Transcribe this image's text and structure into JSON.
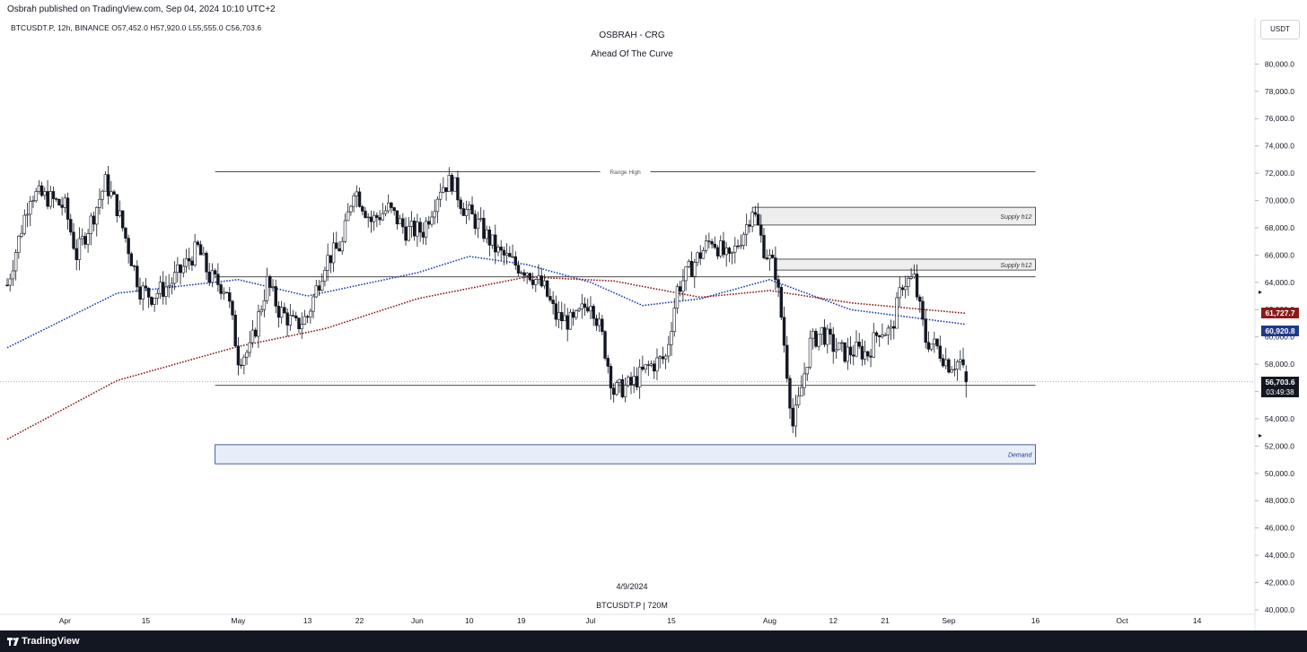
{
  "header": {
    "publish_line": "Osbrah published on TradingView.com, Sep 04, 2024 10:10 UTC+2",
    "symbol_line": "BTCUSDT.P, 12h, BINANCE  O57,452.0  H57,920.0  L55,555.0  C56,703.6",
    "title": "OSBRAH - CRG",
    "subtitle": "Ahead Of The Curve",
    "currency": "USDT"
  },
  "watermark": {
    "date": "4/9/2024",
    "symbol": "BTCUSDT.P | 720M"
  },
  "footer": {
    "brand": "TradingView"
  },
  "price_tags": {
    "ma_red": {
      "label": "61,727.7",
      "color": "#8b1a1a"
    },
    "ma_blue": {
      "label": "60,920.8",
      "color": "#1e3a8a"
    },
    "last": {
      "label": "56,703.6",
      "color": "#131722"
    },
    "countdown": "03:49:38"
  },
  "chart_data": {
    "type": "candlestick",
    "interval": "12h",
    "y_axis": {
      "ticks": [
        40000,
        42000,
        44000,
        46000,
        48000,
        50000,
        52000,
        54000,
        56000,
        58000,
        60000,
        62000,
        64000,
        66000,
        68000,
        70000,
        72000,
        74000,
        76000,
        78000,
        80000
      ],
      "tick_labels": [
        "40,000.0",
        "42,000.0",
        "44,000.0",
        "46,000.0",
        "48,000.0",
        "50,000.0",
        "52,000.0",
        "54,000.0",
        "56,000.0",
        "58,000.0",
        "60,000.0",
        "62,000.0",
        "64,000.0",
        "66,000.0",
        "68,000.0",
        "70,000.0",
        "72,000.0",
        "74,000.0",
        "76,000.0",
        "78,000.0",
        "80,000.0"
      ],
      "range": [
        39800,
        81800
      ]
    },
    "x_axis": {
      "range": [
        "2024-03-22",
        "2024-10-24"
      ],
      "ticks": [
        {
          "date": "2024-04-01",
          "label": "Apr"
        },
        {
          "date": "2024-04-15",
          "label": "15"
        },
        {
          "date": "2024-05-01",
          "label": "May"
        },
        {
          "date": "2024-05-13",
          "label": "13"
        },
        {
          "date": "2024-05-22",
          "label": "22"
        },
        {
          "date": "2024-06-01",
          "label": "Jun"
        },
        {
          "date": "2024-06-10",
          "label": "10"
        },
        {
          "date": "2024-06-19",
          "label": "19"
        },
        {
          "date": "2024-07-01",
          "label": "Jul"
        },
        {
          "date": "2024-07-15",
          "label": "15"
        },
        {
          "date": "2024-08-01",
          "label": "Aug"
        },
        {
          "date": "2024-08-12",
          "label": "12"
        },
        {
          "date": "2024-08-21",
          "label": "21"
        },
        {
          "date": "2024-09-01",
          "label": "Sep"
        },
        {
          "date": "2024-09-16",
          "label": "16"
        },
        {
          "date": "2024-10-01",
          "label": "Oct"
        },
        {
          "date": "2024-10-14",
          "label": "14"
        }
      ]
    },
    "price_path": [
      [
        "2024-03-22",
        63800
      ],
      [
        "2024-03-26",
        70500
      ],
      [
        "2024-03-29",
        70200
      ],
      [
        "2024-04-01",
        69500
      ],
      [
        "2024-04-03",
        66000
      ],
      [
        "2024-04-06",
        69000
      ],
      [
        "2024-04-08",
        71300
      ],
      [
        "2024-04-10",
        69500
      ],
      [
        "2024-04-12",
        66500
      ],
      [
        "2024-04-14",
        63500
      ],
      [
        "2024-04-16",
        63000
      ],
      [
        "2024-04-19",
        63800
      ],
      [
        "2024-04-21",
        64800
      ],
      [
        "2024-04-24",
        66500
      ],
      [
        "2024-04-26",
        64400
      ],
      [
        "2024-04-29",
        63500
      ],
      [
        "2024-05-01",
        58500
      ],
      [
        "2024-05-03",
        59000
      ],
      [
        "2024-05-06",
        64000
      ],
      [
        "2024-05-08",
        62000
      ],
      [
        "2024-05-11",
        60800
      ],
      [
        "2024-05-13",
        61500
      ],
      [
        "2024-05-16",
        65500
      ],
      [
        "2024-05-19",
        66800
      ],
      [
        "2024-05-21",
        71000
      ],
      [
        "2024-05-24",
        68500
      ],
      [
        "2024-05-27",
        69400
      ],
      [
        "2024-05-30",
        67800
      ],
      [
        "2024-06-02",
        67800
      ],
      [
        "2024-06-05",
        71000
      ],
      [
        "2024-06-07",
        71400
      ],
      [
        "2024-06-09",
        69500
      ],
      [
        "2024-06-12",
        68000
      ],
      [
        "2024-06-15",
        66200
      ],
      [
        "2024-06-18",
        65300
      ],
      [
        "2024-06-20",
        64900
      ],
      [
        "2024-06-23",
        63500
      ],
      [
        "2024-06-25",
        61500
      ],
      [
        "2024-06-28",
        61000
      ],
      [
        "2024-07-01",
        62800
      ],
      [
        "2024-07-03",
        60000
      ],
      [
        "2024-07-05",
        56000
      ],
      [
        "2024-07-08",
        56500
      ],
      [
        "2024-07-11",
        57800
      ],
      [
        "2024-07-14",
        58500
      ],
      [
        "2024-07-16",
        63500
      ],
      [
        "2024-07-19",
        65500
      ],
      [
        "2024-07-22",
        67200
      ],
      [
        "2024-07-25",
        65500
      ],
      [
        "2024-07-28",
        68200
      ],
      [
        "2024-07-29",
        69500
      ],
      [
        "2024-07-31",
        66500
      ],
      [
        "2024-08-02",
        64800
      ],
      [
        "2024-08-03",
        61500
      ],
      [
        "2024-08-05",
        53500
      ],
      [
        "2024-08-06",
        55200
      ],
      [
        "2024-08-08",
        59500
      ],
      [
        "2024-08-10",
        60400
      ],
      [
        "2024-08-12",
        59300
      ],
      [
        "2024-08-14",
        58800
      ],
      [
        "2024-08-16",
        59000
      ],
      [
        "2024-08-18",
        58800
      ],
      [
        "2024-08-20",
        60600
      ],
      [
        "2024-08-22",
        60300
      ],
      [
        "2024-08-24",
        64000
      ],
      [
        "2024-08-26",
        64200
      ],
      [
        "2024-08-28",
        59800
      ],
      [
        "2024-08-30",
        59200
      ],
      [
        "2024-09-01",
        58000
      ],
      [
        "2024-09-03",
        58200
      ],
      [
        "2024-09-04",
        56703.6
      ]
    ],
    "moving_averages": [
      {
        "color": "#1e40af",
        "last_value": 60920.8,
        "points": [
          [
            "2024-03-22",
            59200
          ],
          [
            "2024-04-10",
            63200
          ],
          [
            "2024-05-01",
            64200
          ],
          [
            "2024-05-13",
            63000
          ],
          [
            "2024-06-01",
            64700
          ],
          [
            "2024-06-10",
            65900
          ],
          [
            "2024-06-20",
            65300
          ],
          [
            "2024-07-01",
            64000
          ],
          [
            "2024-07-10",
            62300
          ],
          [
            "2024-07-20",
            62800
          ],
          [
            "2024-08-01",
            64200
          ],
          [
            "2024-08-15",
            62000
          ],
          [
            "2024-09-04",
            60920.8
          ]
        ]
      },
      {
        "color": "#8b1a1a",
        "last_value": 61727.7,
        "points": [
          [
            "2024-03-22",
            52500
          ],
          [
            "2024-04-10",
            56800
          ],
          [
            "2024-05-01",
            59300
          ],
          [
            "2024-05-16",
            60600
          ],
          [
            "2024-06-01",
            62800
          ],
          [
            "2024-06-20",
            64400
          ],
          [
            "2024-07-05",
            64100
          ],
          [
            "2024-07-20",
            62900
          ],
          [
            "2024-08-01",
            63400
          ],
          [
            "2024-08-15",
            62500
          ],
          [
            "2024-09-04",
            61727.7
          ]
        ]
      }
    ],
    "levels": [
      {
        "label": "Range High",
        "price": 72100,
        "from": "2024-04-27",
        "to": "2024-09-16"
      },
      {
        "label": "",
        "price": 64400,
        "from": "2024-04-27",
        "to": "2024-09-16"
      },
      {
        "label": "",
        "price": 56450,
        "from": "2024-04-27",
        "to": "2024-09-16"
      }
    ],
    "zones": [
      {
        "label": "Supply h12",
        "top": 69500,
        "bottom": 68200,
        "from": "2024-07-29",
        "to": "2024-09-16",
        "fill": "#eeeeee",
        "stroke": "#333333",
        "text_color": "#333333"
      },
      {
        "label": "Supply h12",
        "top": 65700,
        "bottom": 64900,
        "from": "2024-08-02",
        "to": "2024-09-16",
        "fill": "#eeeeee",
        "stroke": "#333333",
        "text_color": "#333333"
      },
      {
        "label": "Demand",
        "top": 52100,
        "bottom": 50700,
        "from": "2024-04-27",
        "to": "2024-09-16",
        "fill": "#e8eef9",
        "stroke": "#1e3a8a",
        "text_color": "#1e3a8a"
      }
    ]
  }
}
